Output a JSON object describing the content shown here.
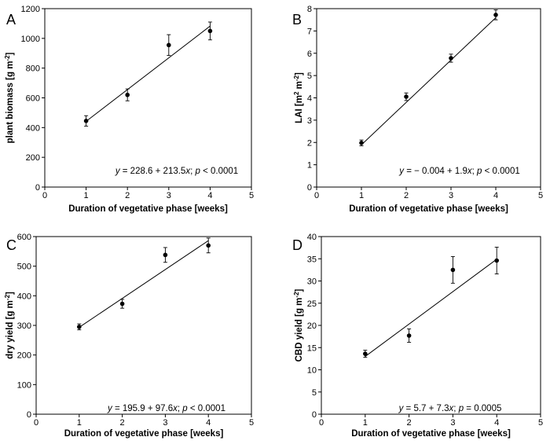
{
  "chart_data": [
    {
      "id": "A",
      "type": "scatter",
      "panel_label": "A",
      "xlabel": "Duration of vegetative phase [weeks]",
      "ylabel_main": "plant biomass [g m",
      "ylabel_sup": "-2",
      "ylabel_tail": "]",
      "xlim": [
        0,
        5
      ],
      "ylim": [
        0,
        1200
      ],
      "xticks": [
        0,
        1,
        2,
        3,
        4,
        5
      ],
      "yticks": [
        0,
        200,
        400,
        600,
        800,
        1000,
        1200
      ],
      "points": [
        {
          "x": 1,
          "y": 445,
          "err": 35
        },
        {
          "x": 2,
          "y": 620,
          "err": 40
        },
        {
          "x": 3,
          "y": 955,
          "err": 70
        },
        {
          "x": 4,
          "y": 1050,
          "err": 60
        }
      ],
      "fit": {
        "intercept": 228.6,
        "slope": 213.5,
        "x_from": 1,
        "x_to": 4
      },
      "equation": {
        "y_var": "y",
        "eq": " = 228.6 + 213.5",
        "x_var": "x",
        "sep": "; ",
        "p_var": "p",
        "p_text": " < 0.0001"
      }
    },
    {
      "id": "B",
      "type": "scatter",
      "panel_label": "B",
      "xlabel": "Duration of vegetative phase [weeks]",
      "ylabel_main": "LAI [m",
      "ylabel_sup": "2",
      "ylabel_mid": " m",
      "ylabel_sup2": "-2",
      "ylabel_tail": "]",
      "xlim": [
        0,
        5
      ],
      "ylim": [
        0,
        8
      ],
      "xticks": [
        0,
        1,
        2,
        3,
        4,
        5
      ],
      "yticks": [
        0,
        1,
        2,
        3,
        4,
        5,
        6,
        7,
        8
      ],
      "points": [
        {
          "x": 1,
          "y": 1.98,
          "err": 0.13
        },
        {
          "x": 2,
          "y": 4.05,
          "err": 0.17
        },
        {
          "x": 3,
          "y": 5.78,
          "err": 0.18
        },
        {
          "x": 4,
          "y": 7.72,
          "err": 0.22
        }
      ],
      "fit": {
        "intercept": -0.004,
        "slope": 1.9,
        "x_from": 1,
        "x_to": 4
      },
      "equation": {
        "y_var": "y",
        "eq": " = − 0.004 + 1.9",
        "x_var": "x",
        "sep": "; ",
        "p_var": "p",
        "p_text": " < 0.0001"
      }
    },
    {
      "id": "C",
      "type": "scatter",
      "panel_label": "C",
      "xlabel": "Duration of vegetative phase [weeks]",
      "ylabel_main": "dry yield [g m",
      "ylabel_sup": "-2",
      "ylabel_tail": "]",
      "xlim": [
        0,
        5
      ],
      "ylim": [
        0,
        600
      ],
      "xticks": [
        0,
        1,
        2,
        3,
        4,
        5
      ],
      "yticks": [
        0,
        100,
        200,
        300,
        400,
        500,
        600
      ],
      "points": [
        {
          "x": 1,
          "y": 295,
          "err": 10
        },
        {
          "x": 2,
          "y": 373,
          "err": 15
        },
        {
          "x": 3,
          "y": 538,
          "err": 25
        },
        {
          "x": 4,
          "y": 570,
          "err": 25
        }
      ],
      "fit": {
        "intercept": 195.9,
        "slope": 97.6,
        "x_from": 1,
        "x_to": 4
      },
      "equation": {
        "y_var": "y",
        "eq": " = 195.9 + 97.6",
        "x_var": "x",
        "sep": "; ",
        "p_var": "p",
        "p_text": " < 0.0001"
      }
    },
    {
      "id": "D",
      "type": "scatter",
      "panel_label": "D",
      "xlabel": "Duration of vegetative phase [weeks]",
      "ylabel_main": "CBD yield [g m",
      "ylabel_sup": "-2",
      "ylabel_tail": "]",
      "xlim": [
        0,
        5
      ],
      "ylim": [
        0,
        40
      ],
      "xticks": [
        0,
        1,
        2,
        3,
        4,
        5
      ],
      "yticks": [
        0,
        5,
        10,
        15,
        20,
        25,
        30,
        35,
        40
      ],
      "points": [
        {
          "x": 1,
          "y": 13.6,
          "err": 0.8
        },
        {
          "x": 2,
          "y": 17.7,
          "err": 1.5
        },
        {
          "x": 3,
          "y": 32.5,
          "err": 3.0
        },
        {
          "x": 4,
          "y": 34.6,
          "err": 3.0
        }
      ],
      "fit": {
        "intercept": 5.7,
        "slope": 7.3,
        "x_from": 1,
        "x_to": 4
      },
      "equation": {
        "y_var": "y",
        "eq": " = 5.7 + 7.3",
        "x_var": "x",
        "sep": "; ",
        "p_var": "p",
        "p_text": " = 0.0005"
      }
    }
  ]
}
